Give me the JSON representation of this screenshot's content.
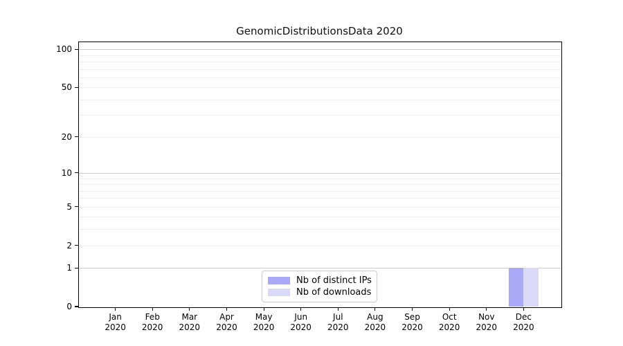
{
  "chart_data": {
    "type": "bar",
    "title": "GenomicDistributionsData 2020",
    "categories": [
      "Jan",
      "Feb",
      "Mar",
      "Apr",
      "May",
      "Jun",
      "Jul",
      "Aug",
      "Sep",
      "Oct",
      "Nov",
      "Dec"
    ],
    "category_year": "2020",
    "series": [
      {
        "name": "Nb of distinct IPs",
        "color": "#a9a9f7",
        "values": [
          0,
          0,
          0,
          0,
          0,
          0,
          0,
          0,
          0,
          0,
          0,
          1
        ]
      },
      {
        "name": "Nb of downloads",
        "color": "#dadaf8",
        "values": [
          0,
          0,
          0,
          0,
          0,
          0,
          0,
          0,
          0,
          0,
          0,
          1
        ]
      }
    ],
    "xlabel": "",
    "ylabel": "",
    "y_scale": "log10(value+1)",
    "y_tick_labels": [
      0,
      1,
      2,
      5,
      10,
      20,
      50,
      100
    ],
    "y_major_gridlines": [
      1,
      10,
      100
    ],
    "y_minor_gridlines": [
      2,
      3,
      4,
      5,
      6,
      7,
      8,
      9,
      20,
      30,
      40,
      50,
      60,
      70,
      80,
      90
    ],
    "ylim": [
      0,
      115
    ],
    "grid": "horizontal major+minor",
    "legend_position": "lower center inside plot",
    "bar_relative_width": 0.4
  },
  "colors": {
    "background": "#ffffff",
    "spine": "#000000",
    "major_grid": "#cccccc",
    "minor_grid": "#efefef",
    "bar_distinct_ips": "#a9a9f7",
    "bar_downloads": "#dadaf8"
  }
}
